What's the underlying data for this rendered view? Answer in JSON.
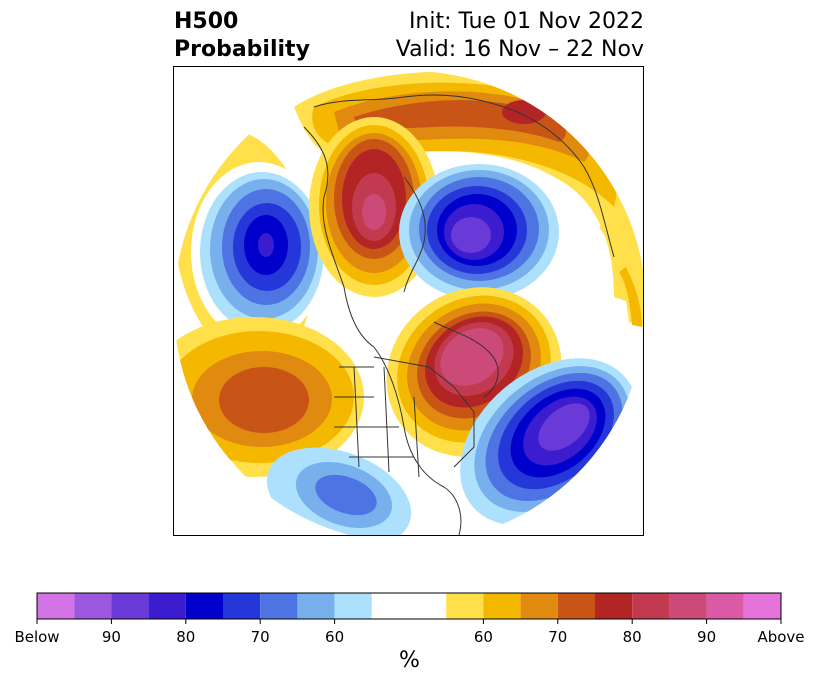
{
  "title": {
    "left_line1": "H500",
    "left_line2": "Probability",
    "init": "Init: Tue 01 Nov 2022",
    "valid": "Valid: 16 Nov – 22 Nov"
  },
  "colorbar": {
    "unit": "%",
    "tick_labels": [
      "Below",
      "90",
      "80",
      "70",
      "60",
      "60",
      "70",
      "80",
      "90",
      "Above"
    ],
    "below_colors": [
      "#d473e6",
      "#9b57dd",
      "#6a3ad8",
      "#3b1ccf",
      "#0000cc",
      "#2537d9",
      "#4e73e3",
      "#78b0ee",
      "#ade0fc"
    ],
    "neutral_color": "#ffffff",
    "above_colors": [
      "#ffe04a",
      "#f5b800",
      "#e08a10",
      "#c85516",
      "#b32525",
      "#c23a50",
      "#cc4a78",
      "#da5aa5",
      "#e573d9"
    ]
  },
  "map": {
    "projection": "polar-stereographic",
    "regions": [
      {
        "name": "north-pacific-anomaly",
        "kind": "below",
        "level": 80
      },
      {
        "name": "central-pacific-anomaly",
        "kind": "above",
        "level": 70
      },
      {
        "name": "north-canada-anomaly",
        "kind": "above",
        "level": 90
      },
      {
        "name": "siberia-arctic-anomaly",
        "kind": "below",
        "level": 90
      },
      {
        "name": "north-atlantic-anomaly",
        "kind": "below",
        "level": 90
      },
      {
        "name": "eastern-canada-anomaly",
        "kind": "above",
        "level": 90
      },
      {
        "name": "eurasia-arctic-anomaly",
        "kind": "above",
        "level": 80
      },
      {
        "name": "southwest-us-anomaly",
        "kind": "below",
        "level": 70
      }
    ]
  }
}
